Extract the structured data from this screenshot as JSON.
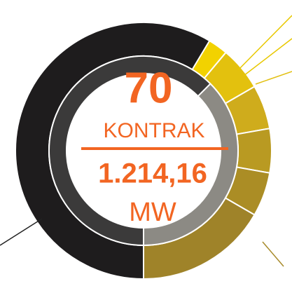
{
  "center": {
    "count": "70",
    "count_label": "KONTRAK",
    "capacity": "1.214,16",
    "capacity_unit": "MW"
  }
}
